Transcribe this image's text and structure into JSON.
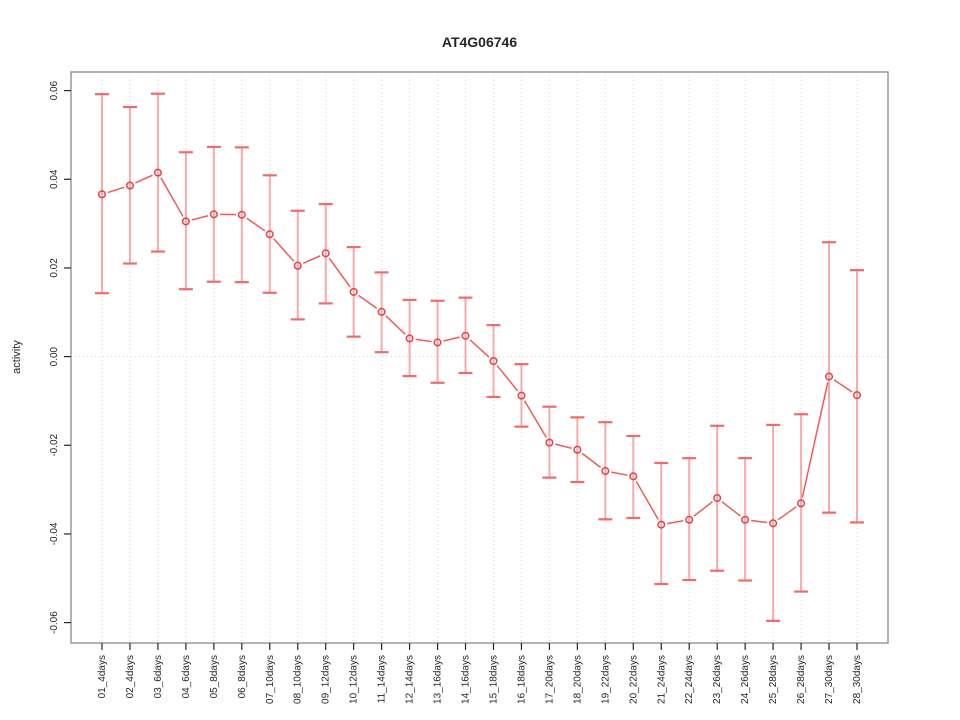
{
  "page": {
    "background": "#ffffff"
  },
  "chart_data": {
    "type": "line",
    "title": "AT4G06746",
    "xlabel": "",
    "ylabel": "activity",
    "legend": "none",
    "grid": {
      "vertical": "dotted line at each category",
      "horizontal": "dotted line at y=0 only"
    },
    "ylim": [
      -0.0646,
      0.0642
    ],
    "yticks": [
      -0.06,
      -0.04,
      -0.02,
      0,
      0.02,
      0.04,
      0.06
    ],
    "ytick_labels": [
      "-0.06",
      "-0.04",
      "-0.02",
      "0.00",
      "0.02",
      "0.04",
      "0.06"
    ],
    "categories": [
      "01_4days",
      "02_4days",
      "03_6days",
      "04_6days",
      "05_8days",
      "06_8days",
      "07_10days",
      "08_10days",
      "09_12days",
      "10_12days",
      "11_14days",
      "12_14days",
      "13_16days",
      "14_16days",
      "15_18days",
      "16_18days",
      "17_20days",
      "18_20days",
      "19_22days",
      "20_22days",
      "21_24days",
      "22_24days",
      "23_26days",
      "24_26days",
      "25_28days",
      "26_28days",
      "27_30days",
      "28_30days"
    ],
    "series": [
      {
        "name": "activity",
        "marker": "open-circle",
        "values": [
          0.0366,
          0.0386,
          0.0415,
          0.0305,
          0.0321,
          0.032,
          0.0276,
          0.0205,
          0.0233,
          0.0146,
          0.0101,
          0.0041,
          0.0032,
          0.0047,
          -0.001,
          -0.0088,
          -0.0194,
          -0.021,
          -0.0258,
          -0.027,
          -0.0379,
          -0.0368,
          -0.0319,
          -0.0368,
          -0.0376,
          -0.0331,
          -0.0045,
          -0.0087
        ],
        "error_low": [
          0.0143,
          0.021,
          0.0237,
          0.0152,
          0.0169,
          0.0168,
          0.0144,
          0.0084,
          0.012,
          0.0045,
          0.001,
          -0.0044,
          -0.0059,
          -0.0037,
          -0.0091,
          -0.0158,
          -0.0273,
          -0.0283,
          -0.0367,
          -0.0364,
          -0.0513,
          -0.0504,
          -0.0483,
          -0.0505,
          -0.0596,
          -0.053,
          -0.0352,
          -0.0374
        ],
        "error_high": [
          0.0592,
          0.0563,
          0.0593,
          0.0461,
          0.0473,
          0.0472,
          0.0409,
          0.0329,
          0.0344,
          0.0247,
          0.019,
          0.0128,
          0.0126,
          0.0133,
          0.0071,
          -0.0017,
          -0.0113,
          -0.0137,
          -0.0148,
          -0.0179,
          -0.024,
          -0.0229,
          -0.0156,
          -0.0229,
          -0.0154,
          -0.013,
          0.0258,
          0.0195
        ]
      }
    ],
    "colors": {
      "series_line": "#f05a5a",
      "point_stroke": "#e24444",
      "error_line": "#f8a9a9",
      "error_cap": "#ef6b6b",
      "grid": "#d8d8d8",
      "frame": "#8a8a8a",
      "tick": "#262626",
      "text": "#262626"
    }
  }
}
